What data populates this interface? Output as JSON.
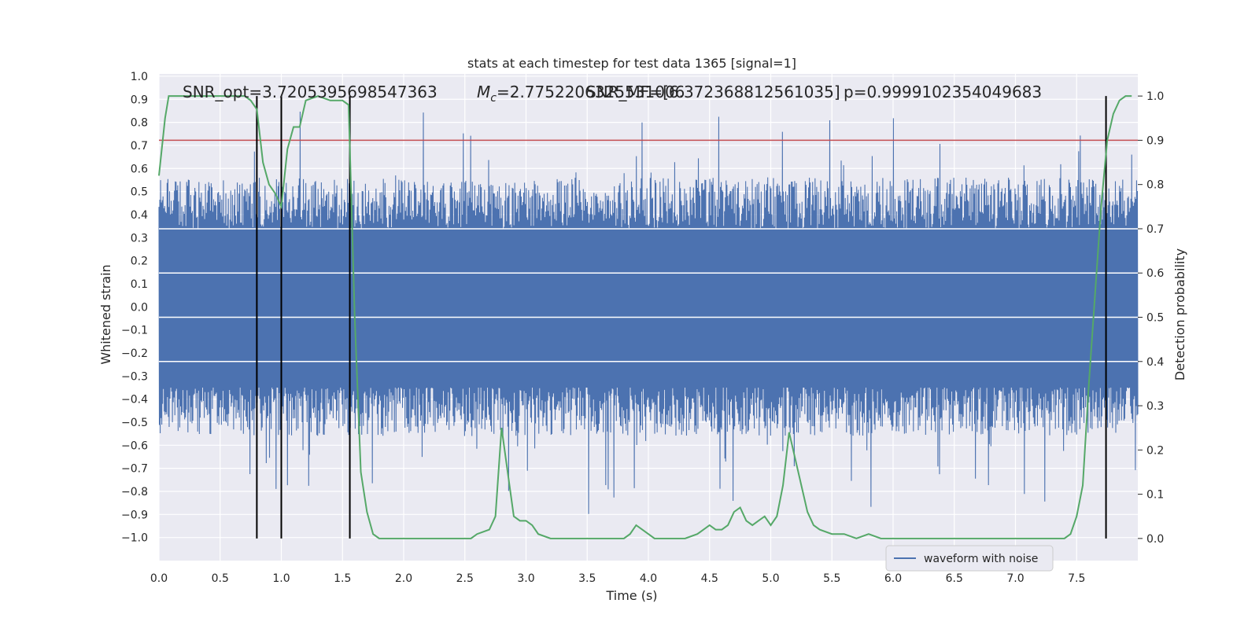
{
  "chart_data": {
    "type": "line",
    "title": "stats at each timestep for test data 1365 [signal=1]",
    "xlabel": "Time (s)",
    "ylabel_left": "Whitened strain",
    "ylabel_right": "Detection probability",
    "xlim": [
      0.0,
      8.0
    ],
    "ylim_left": [
      -1.1,
      1.01
    ],
    "ylim_right": [
      -0.05,
      1.05
    ],
    "x_ticks": [
      "0.0",
      "0.5",
      "1.0",
      "1.5",
      "2.0",
      "2.5",
      "3.0",
      "3.5",
      "4.0",
      "4.5",
      "5.0",
      "5.5",
      "6.0",
      "6.5",
      "7.0",
      "7.5"
    ],
    "y_left_ticks": [
      "1.0",
      "0.9",
      "0.8",
      "0.7",
      "0.6",
      "0.5",
      "0.4",
      "0.3",
      "0.2",
      "0.1",
      "0.0",
      "-0.1",
      "-0.2",
      "-0.3",
      "-0.4",
      "-0.5",
      "-0.6",
      "-0.7",
      "-0.8",
      "-0.9",
      "-1.0"
    ],
    "y_right_ticks": [
      "1.0",
      "0.9",
      "0.8",
      "0.7",
      "0.6",
      "0.5",
      "0.4",
      "0.3",
      "0.2",
      "0.1",
      "0.0"
    ],
    "annotations": {
      "snr_opt": "SNR_opt=3.7205395698547363",
      "mc_prefix": "M",
      "mc_sub": "c",
      "mc_value": "=2.7752206325531006",
      "snr_mf": "SNR_MF=[6.372368812561035]",
      "p_value": "p=0.9999102354049683"
    },
    "threshold": 0.9,
    "vertical_markers_s": [
      0.8,
      1.0,
      1.56,
      7.74
    ],
    "series": [
      {
        "name": "waveform with noise",
        "axis": "left",
        "color": "#4c72b0",
        "description": "dense noisy strain, roughly within ±0.5 with spikes to ±0.95"
      },
      {
        "axis": "right",
        "color": "#55a868",
        "x": [
          0.0,
          0.05,
          0.08,
          0.12,
          0.2,
          0.3,
          0.4,
          0.5,
          0.6,
          0.65,
          0.7,
          0.75,
          0.8,
          0.85,
          0.88,
          0.9,
          0.95,
          1.0,
          1.05,
          1.1,
          1.15,
          1.2,
          1.3,
          1.4,
          1.5,
          1.55,
          1.6,
          1.65,
          1.7,
          1.75,
          1.8,
          1.9,
          2.0,
          2.2,
          2.4,
          2.55,
          2.6,
          2.7,
          2.75,
          2.8,
          2.85,
          2.9,
          2.95,
          3.0,
          3.05,
          3.1,
          3.2,
          3.5,
          3.7,
          3.8,
          3.85,
          3.9,
          3.95,
          4.0,
          4.05,
          4.1,
          4.2,
          4.3,
          4.4,
          4.5,
          4.55,
          4.6,
          4.65,
          4.7,
          4.75,
          4.8,
          4.85,
          4.9,
          4.95,
          5.0,
          5.05,
          5.1,
          5.15,
          5.2,
          5.25,
          5.3,
          5.35,
          5.4,
          5.5,
          5.6,
          5.7,
          5.8,
          5.9,
          6.0,
          6.2,
          6.5,
          7.0,
          7.3,
          7.4,
          7.45,
          7.5,
          7.55,
          7.6,
          7.65,
          7.7,
          7.75,
          7.8,
          7.85,
          7.9,
          7.95
        ],
        "y": [
          0.82,
          0.95,
          1.0,
          1.0,
          1.0,
          1.0,
          1.0,
          1.0,
          1.0,
          1.0,
          1.0,
          0.99,
          0.97,
          0.85,
          0.82,
          0.8,
          0.78,
          0.75,
          0.88,
          0.93,
          0.93,
          0.99,
          1.0,
          0.99,
          0.99,
          0.98,
          0.5,
          0.15,
          0.06,
          0.01,
          0.0,
          0.0,
          0.0,
          0.0,
          0.0,
          0.0,
          0.01,
          0.02,
          0.05,
          0.25,
          0.15,
          0.05,
          0.04,
          0.04,
          0.03,
          0.01,
          0.0,
          0.0,
          0.0,
          0.0,
          0.01,
          0.03,
          0.02,
          0.01,
          0.0,
          0.0,
          0.0,
          0.0,
          0.01,
          0.03,
          0.02,
          0.02,
          0.03,
          0.06,
          0.07,
          0.04,
          0.03,
          0.04,
          0.05,
          0.03,
          0.05,
          0.12,
          0.24,
          0.18,
          0.12,
          0.06,
          0.03,
          0.02,
          0.01,
          0.01,
          0.0,
          0.01,
          0.0,
          0.0,
          0.0,
          0.0,
          0.0,
          0.0,
          0.0,
          0.01,
          0.05,
          0.12,
          0.35,
          0.55,
          0.75,
          0.9,
          0.96,
          0.99,
          1.0,
          1.0
        ]
      }
    ],
    "legend": {
      "position": "lower-right",
      "entries": [
        "waveform with noise"
      ]
    },
    "grid": true,
    "colors": {
      "background": "#eaeaf2",
      "grid": "#ffffff",
      "strain": "#4c72b0",
      "probability": "#55a868",
      "threshold": "#c44e52",
      "markers": "#000000"
    }
  }
}
